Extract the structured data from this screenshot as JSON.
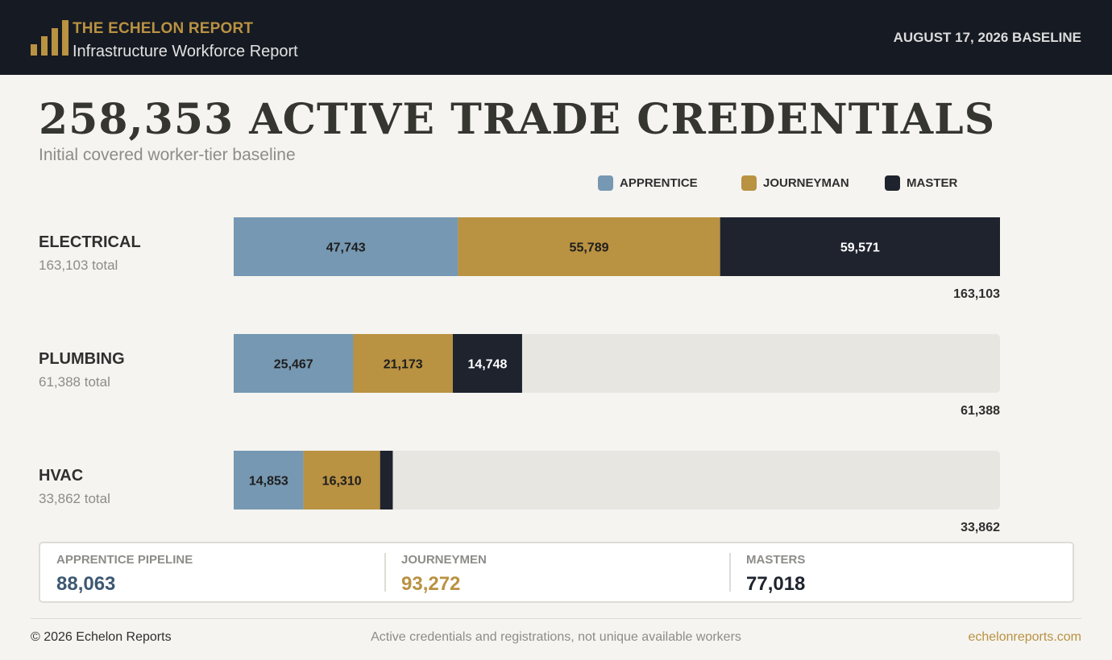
{
  "header": {
    "brand": "THE ECHELON REPORT",
    "subtitle": "Infrastructure Workforce Report",
    "baseline": "AUGUST 17, 2026 BASELINE",
    "logo_icon": "bar-chart-logo-icon"
  },
  "title": "258,353 ACTIVE TRADE CREDENTIALS",
  "subtitle": "Initial covered worker-tier baseline",
  "legend": [
    {
      "label": "APPRENTICE",
      "color": "#7698b2"
    },
    {
      "label": "JOURNEYMAN",
      "color": "#b99242"
    },
    {
      "label": "MASTER",
      "color": "#1e232e"
    }
  ],
  "chart_data": {
    "type": "bar",
    "orientation": "horizontal-stacked",
    "categories": [
      "ELECTRICAL",
      "PLUMBING",
      "HVAC"
    ],
    "category_totals_text": [
      "163,103 total",
      "61,388 total",
      "33,862 total"
    ],
    "totals": [
      163103,
      61388,
      33862
    ],
    "total_labels": [
      "163,103",
      "61,388",
      "33,862"
    ],
    "xlim": [
      0,
      163103
    ],
    "series": [
      {
        "name": "APPRENTICE",
        "color": "#7698b2",
        "values": [
          47743,
          25467,
          14853
        ],
        "labels": [
          "47,743",
          "25,467",
          "14,853"
        ]
      },
      {
        "name": "JOURNEYMAN",
        "color": "#b99242",
        "values": [
          55789,
          21173,
          16310
        ],
        "labels": [
          "55,789",
          "21,173",
          "16,310"
        ]
      },
      {
        "name": "MASTER",
        "color": "#1e232e",
        "values": [
          59571,
          14748,
          2699
        ],
        "labels": [
          "59,571",
          "14,748",
          ""
        ]
      }
    ]
  },
  "summary": [
    {
      "label": "APPRENTICE PIPELINE",
      "value": "88,063",
      "color": "#3d5872"
    },
    {
      "label": "JOURNEYMEN",
      "value": "93,272",
      "color": "#b99242"
    },
    {
      "label": "MASTERS",
      "value": "77,018",
      "color": "#1e232e"
    }
  ],
  "footer": {
    "copyright": "© 2026 Echelon Reports",
    "note": "Active credentials and registrations, not unique available workers",
    "link": "echelonreports.com"
  }
}
